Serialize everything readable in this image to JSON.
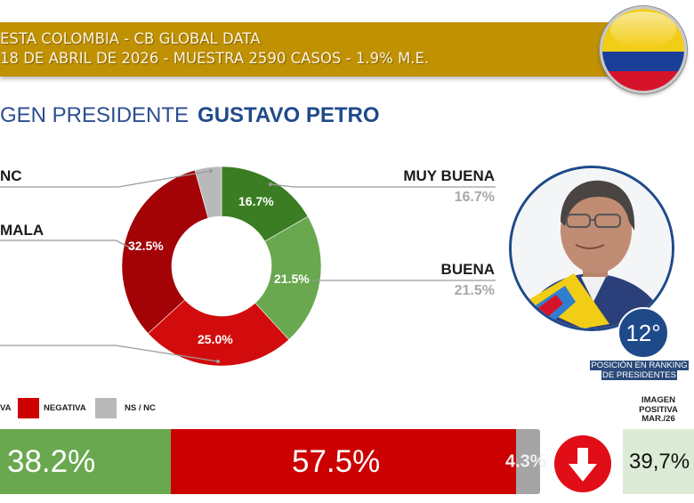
{
  "header": {
    "line1": "ESTA COLOMBIA - CB GLOBAL DATA",
    "line2": "18 DE ABRIL DE 2026 - MUESTRA 2590 CASOS - 1.9% M.E.",
    "band_color": "#c09103",
    "flag": "colombia-flag-icon"
  },
  "title": {
    "prefix": "GEN PRESIDENTE",
    "name": "GUSTAVO PETRO"
  },
  "donut": {
    "left_labels": [
      {
        "label": "NC"
      },
      {
        "label": "MALA"
      }
    ],
    "right_labels": [
      {
        "label": "MUY BUENA",
        "value": "16.7%"
      },
      {
        "label": "BUENA",
        "value": "21.5%"
      }
    ],
    "slice_labels": [
      "16.7%",
      "21.5%",
      "25.0%",
      "32.5%"
    ]
  },
  "portrait": {
    "rank": "12°",
    "rank_caption_1": "POSICIÓN EN RANKING",
    "rank_caption_2": "DE PRESIDENTES"
  },
  "legend": {
    "positive": "VA",
    "negative": "NEGATIVA",
    "nsnc": "NS / NC"
  },
  "bars": {
    "positive": "38.2%",
    "negative": "57.5%",
    "nsnc": "4.3%"
  },
  "previous": {
    "caption_1": "IMAGEN",
    "caption_2": "POSITIVA",
    "caption_3": "MAR./26",
    "value": "39,7%",
    "trend": "down"
  },
  "colors": {
    "muy_buena": "#3a7d22",
    "buena": "#69a84f",
    "mala": "#d20c0c",
    "muy_mala": "#a30306",
    "nsnc": "#b9b9b9",
    "positive_bar": "#6aa84f",
    "negative_bar": "#cc0000",
    "nsnc_bar": "#a4a4a4",
    "title_blue": "#1f4a8a"
  },
  "chart_data": [
    {
      "type": "pie",
      "title": "IMAGEN PRESIDENTE GUSTAVO PETRO",
      "variant": "donut",
      "categories": [
        "MUY BUENA",
        "BUENA",
        "MALA",
        "MUY MALA",
        "NS / NC"
      ],
      "values": [
        16.7,
        21.5,
        25.0,
        32.5,
        4.3
      ],
      "colors": [
        "#3a7d22",
        "#69a84f",
        "#d20c0c",
        "#a30306",
        "#b9b9b9"
      ],
      "value_labels": [
        "16.7%",
        "21.5%",
        "25.0%",
        "32.5%",
        ""
      ]
    },
    {
      "type": "bar",
      "orientation": "horizontal-stacked",
      "categories": [
        "POSITIVA",
        "NEGATIVA",
        "NS / NC"
      ],
      "values": [
        38.2,
        57.5,
        4.3
      ],
      "colors": [
        "#6aa84f",
        "#cc0000",
        "#a4a4a4"
      ],
      "legend_position": "top-left"
    }
  ]
}
